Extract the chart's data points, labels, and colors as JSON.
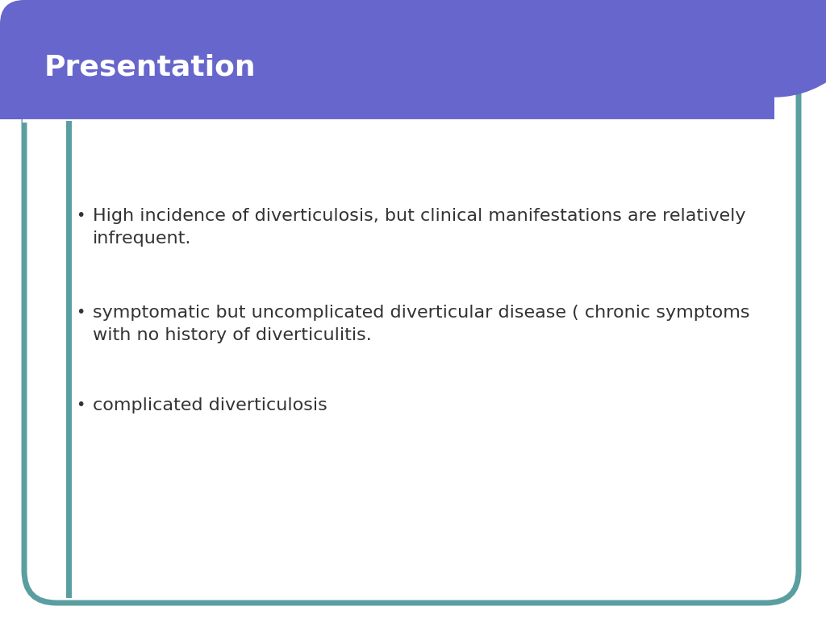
{
  "title": "Presentation",
  "title_color": "#ffffff",
  "title_bg_color": "#6666cc",
  "title_fontsize": 26,
  "slide_bg_color": "#ffffff",
  "border_color": "#5a9ea0",
  "separator_color": "#ffffff",
  "bullet_points": [
    "High incidence of diverticulosis, but clinical manifestations are relatively\ninfrequent.",
    "symptomatic but uncomplicated diverticular disease ( chronic symptoms\nwith no history of diverticulitis.",
    "complicated diverticulosis"
  ],
  "bullet_symbol": "•",
  "bullet_color": "#333333",
  "bullet_fontsize": 16,
  "content_bg": "#ffffff"
}
